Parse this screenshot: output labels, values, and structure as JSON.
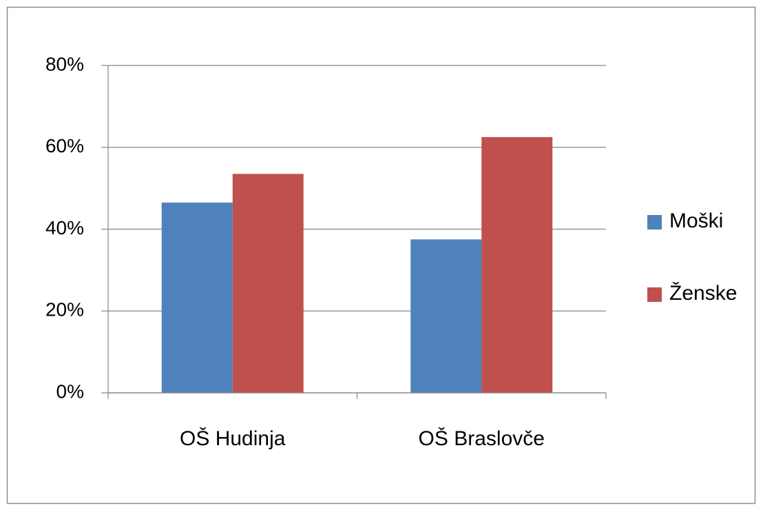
{
  "chart_data": {
    "type": "bar",
    "categories": [
      "OŠ Hudinja",
      "OŠ Braslovče"
    ],
    "series": [
      {
        "name": "Moški",
        "color": "#4f81bd",
        "values": [
          46.5,
          37.5
        ]
      },
      {
        "name": "Ženske",
        "color": "#c0504d",
        "values": [
          53.5,
          62.5
        ]
      }
    ],
    "ylim": [
      0,
      80
    ],
    "yticks": [
      {
        "value": 0,
        "label": "0%"
      },
      {
        "value": 20,
        "label": "20%"
      },
      {
        "value": 40,
        "label": "40%"
      },
      {
        "value": 60,
        "label": "60%"
      },
      {
        "value": 80,
        "label": "80%"
      }
    ],
    "grid": true,
    "legend": "right"
  }
}
